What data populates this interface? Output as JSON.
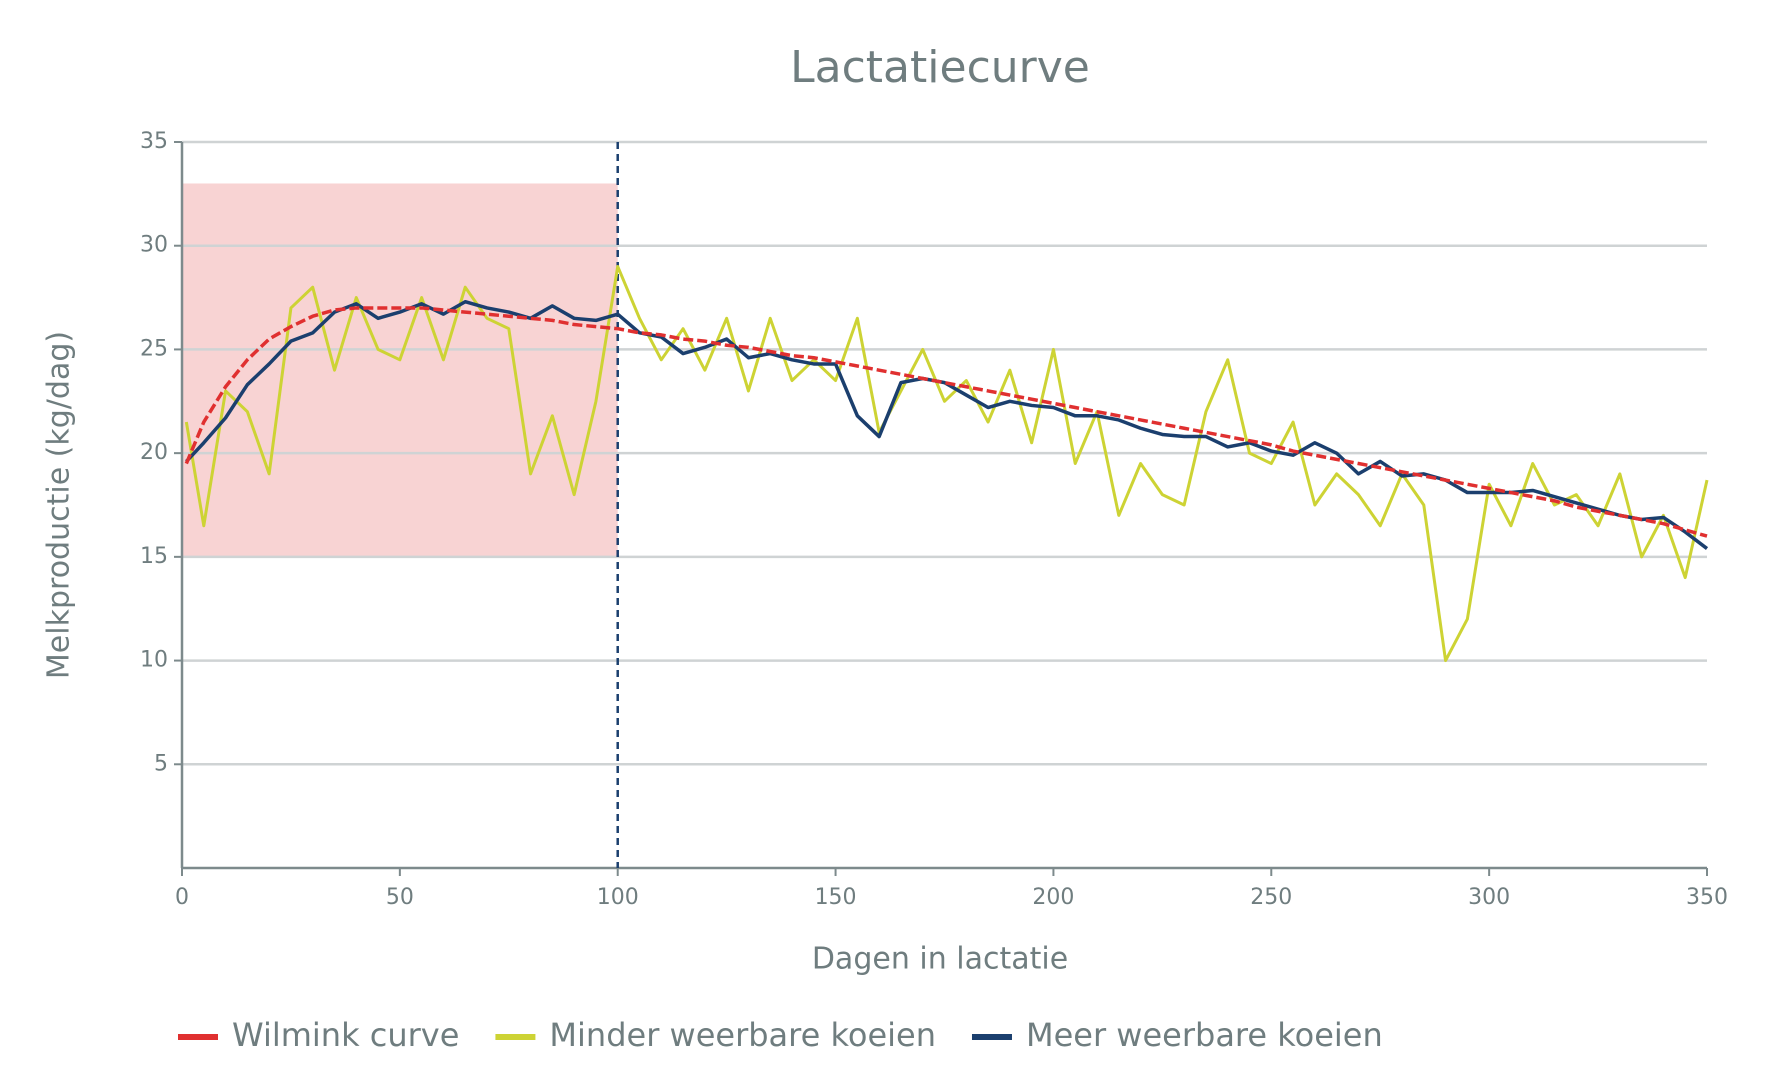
{
  "chart_data": {
    "type": "line",
    "title": "Lactatiecurve",
    "xlabel": "Dagen in lactatie",
    "ylabel": "Melkproductie (kg/dag)",
    "xlim": [
      0,
      350
    ],
    "ylim": [
      0,
      35
    ],
    "xticks": [
      0,
      50,
      100,
      150,
      200,
      250,
      300,
      350
    ],
    "yticks": [
      5,
      10,
      15,
      20,
      25,
      30,
      35
    ],
    "grid": true,
    "legend": "bottom",
    "shaded_region": {
      "xlim": [
        0,
        100
      ],
      "ylim": [
        15,
        33
      ],
      "color": "#f8d3d3"
    },
    "vline": 100,
    "x": [
      1,
      5,
      10,
      15,
      20,
      25,
      30,
      35,
      40,
      45,
      50,
      55,
      60,
      65,
      70,
      75,
      80,
      85,
      90,
      95,
      100,
      105,
      110,
      115,
      120,
      125,
      130,
      135,
      140,
      145,
      150,
      155,
      160,
      165,
      170,
      175,
      180,
      185,
      190,
      195,
      200,
      205,
      210,
      215,
      220,
      225,
      230,
      235,
      240,
      245,
      250,
      255,
      260,
      265,
      270,
      275,
      280,
      285,
      290,
      295,
      300,
      305,
      310,
      315,
      320,
      325,
      330,
      335,
      340,
      345,
      350
    ],
    "series": [
      {
        "name": "Wilmink curve",
        "color": "#e03030",
        "dashed": true,
        "values": [
          19.5,
          21.5,
          23.2,
          24.5,
          25.5,
          26.1,
          26.6,
          26.9,
          27.0,
          27.0,
          27.0,
          27.0,
          26.9,
          26.8,
          26.7,
          26.6,
          26.5,
          26.4,
          26.2,
          26.1,
          26.0,
          25.8,
          25.7,
          25.5,
          25.4,
          25.2,
          25.1,
          24.9,
          24.7,
          24.6,
          24.4,
          24.2,
          24.0,
          23.8,
          23.6,
          23.4,
          23.2,
          23.0,
          22.8,
          22.6,
          22.4,
          22.2,
          22.0,
          21.8,
          21.6,
          21.4,
          21.2,
          21.0,
          20.8,
          20.6,
          20.4,
          20.1,
          19.9,
          19.7,
          19.5,
          19.3,
          19.1,
          18.9,
          18.7,
          18.5,
          18.3,
          18.1,
          17.9,
          17.7,
          17.4,
          17.2,
          17.0,
          16.8,
          16.6,
          16.3,
          16.0
        ]
      },
      {
        "name": "Minder weerbare koeien",
        "color": "#cdd334",
        "values": [
          21.5,
          16.5,
          23.0,
          22.0,
          19.0,
          27.0,
          28.0,
          24.0,
          27.5,
          25.0,
          24.5,
          27.5,
          24.5,
          28.0,
          26.5,
          26.0,
          19.0,
          21.8,
          18.0,
          22.5,
          29.0,
          26.5,
          24.5,
          26.0,
          24.0,
          26.5,
          23.0,
          26.5,
          23.5,
          24.5,
          23.5,
          26.5,
          21.0,
          23.0,
          25.0,
          22.5,
          23.5,
          21.5,
          24.0,
          20.5,
          25.0,
          19.5,
          22.0,
          17.0,
          19.5,
          18.0,
          17.5,
          22.0,
          24.5,
          20.0,
          19.5,
          21.5,
          17.5,
          19.0,
          18.0,
          16.5,
          19.0,
          17.5,
          10.0,
          12.0,
          18.5,
          16.5,
          19.5,
          17.5,
          18.0,
          16.5,
          19.0,
          15.0,
          17.0,
          14.0,
          18.7
        ]
      },
      {
        "name": "Meer weerbare koeien",
        "color": "#1b3f6e",
        "values": [
          19.6,
          20.5,
          21.7,
          23.3,
          24.3,
          25.4,
          25.8,
          26.8,
          27.2,
          26.5,
          26.8,
          27.2,
          26.7,
          27.3,
          27.0,
          26.8,
          26.5,
          27.1,
          26.5,
          26.4,
          26.7,
          25.8,
          25.6,
          24.8,
          25.1,
          25.5,
          24.6,
          24.8,
          24.5,
          24.3,
          24.3,
          21.8,
          20.8,
          23.4,
          23.6,
          23.4,
          22.8,
          22.2,
          22.5,
          22.3,
          22.2,
          21.8,
          21.8,
          21.6,
          21.2,
          20.9,
          20.8,
          20.8,
          20.3,
          20.5,
          20.1,
          19.9,
          20.5,
          20.0,
          19.0,
          19.6,
          18.9,
          19.0,
          18.7,
          18.1,
          18.1,
          18.1,
          18.2,
          17.9,
          17.6,
          17.3,
          17.0,
          16.8,
          16.9,
          16.2,
          15.4
        ]
      }
    ]
  }
}
